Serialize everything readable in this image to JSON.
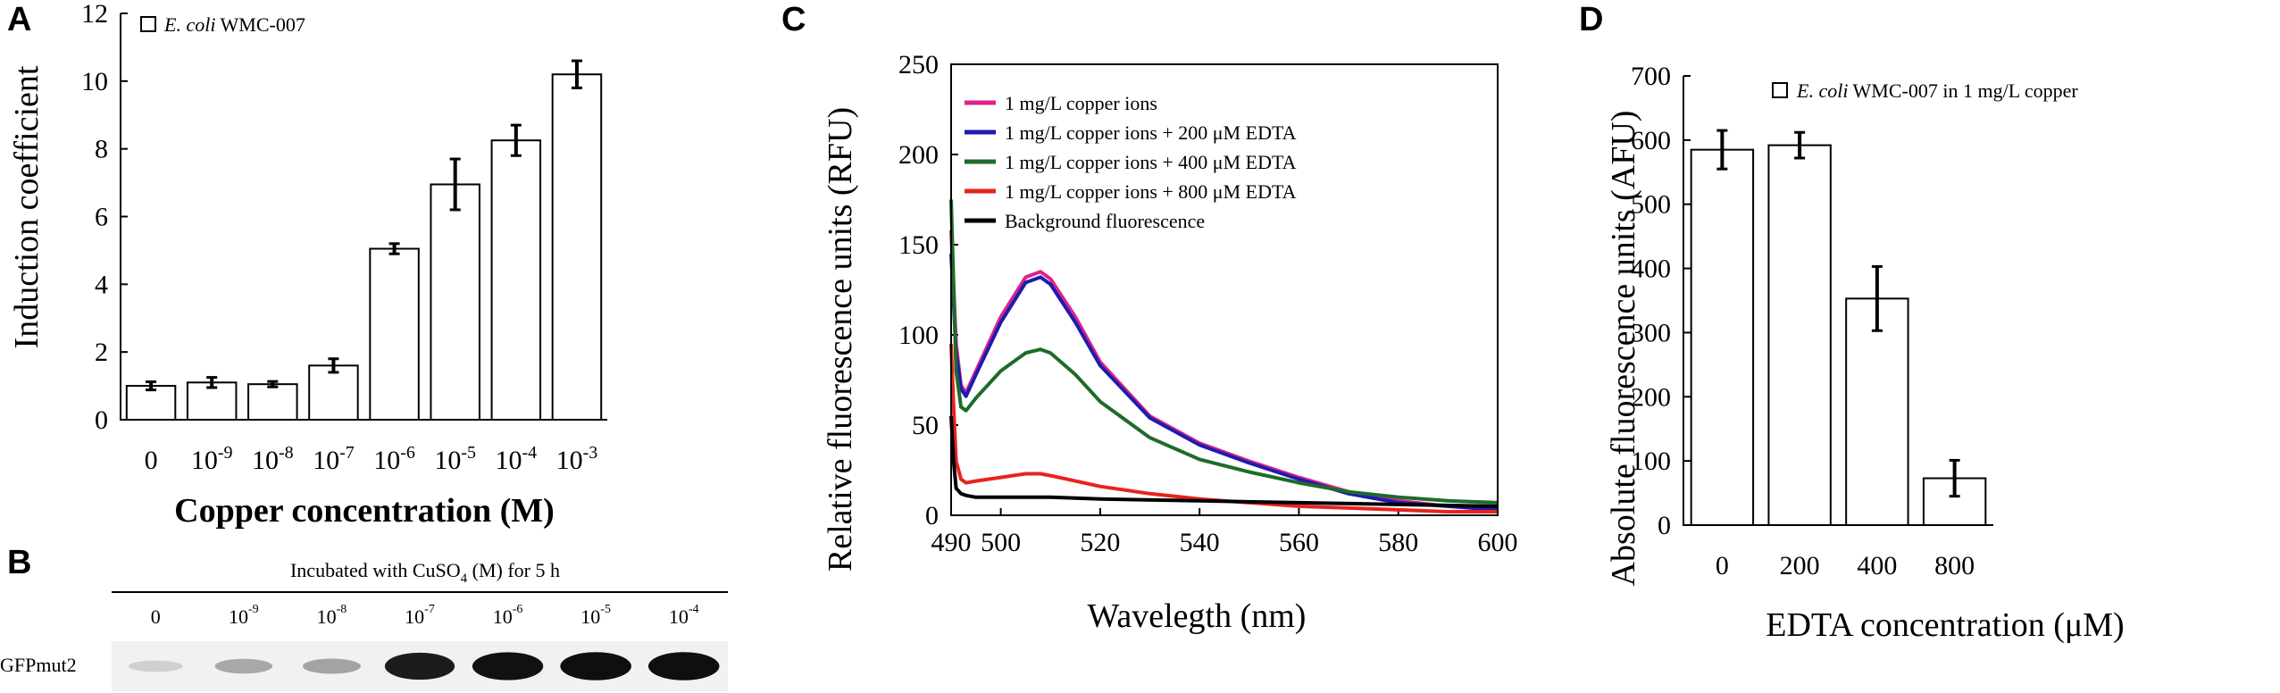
{
  "panels": {
    "A": {
      "letter": "A",
      "chart_data": {
        "type": "bar",
        "title": "",
        "xlabel": "Copper concentration (M)",
        "ylabel": "Induction coefficient",
        "categories": [
          {
            "base": "0",
            "exp": ""
          },
          {
            "base": "10",
            "exp": "-9"
          },
          {
            "base": "10",
            "exp": "-8"
          },
          {
            "base": "10",
            "exp": "-7"
          },
          {
            "base": "10",
            "exp": "-6"
          },
          {
            "base": "10",
            "exp": "-5"
          },
          {
            "base": "10",
            "exp": "-4"
          },
          {
            "base": "10",
            "exp": "-3"
          }
        ],
        "values": [
          1.0,
          1.1,
          1.05,
          1.6,
          5.05,
          6.95,
          8.25,
          10.2
        ],
        "errors": [
          0.12,
          0.15,
          0.08,
          0.2,
          0.15,
          0.75,
          0.45,
          0.4
        ],
        "ylim": [
          0,
          12
        ],
        "yticks": [
          "0",
          "2",
          "4",
          "6",
          "8",
          "10",
          "12"
        ],
        "legend": [
          {
            "label_italic": "E. coli",
            "label": " WMC-007",
            "marker": "open-square"
          }
        ]
      }
    },
    "B": {
      "letter": "B",
      "title": "Incubated with CuSO",
      "title_sub": "4",
      "title_tail": " (M) for 5 h",
      "lanes": [
        {
          "base": "0",
          "exp": ""
        },
        {
          "base": "10",
          "exp": "-9"
        },
        {
          "base": "10",
          "exp": "-8"
        },
        {
          "base": "10",
          "exp": "-7"
        },
        {
          "base": "10",
          "exp": "-6"
        },
        {
          "base": "10",
          "exp": "-5"
        },
        {
          "base": "10",
          "exp": "-4"
        }
      ],
      "band_label": "GFPmut2",
      "band_intensity": [
        0.12,
        0.3,
        0.32,
        0.92,
        0.97,
        0.98,
        0.98
      ]
    },
    "C": {
      "letter": "C",
      "chart_data": {
        "type": "line",
        "title": "",
        "xlabel": "Wavelegth (nm)",
        "ylabel": "Relative fluorescence units (RFU)",
        "xlim": [
          490,
          600
        ],
        "ylim": [
          0,
          250
        ],
        "xticks": [
          "490",
          "500",
          "520",
          "540",
          "560",
          "580",
          "600"
        ],
        "xtick_values": [
          490,
          500,
          520,
          540,
          560,
          580,
          600
        ],
        "yticks": [
          "0",
          "50",
          "100",
          "150",
          "200",
          "250"
        ],
        "series": [
          {
            "name": "1 mg/L copper ions",
            "color": "#e0218a",
            "x": [
              490,
              491,
              492,
              493,
              495,
              500,
              505,
              508,
              510,
              515,
              520,
              530,
              540,
              550,
              560,
              570,
              580,
              590,
              600
            ],
            "y": [
              158,
              95,
              72,
              68,
              80,
              110,
              132,
              135,
              131,
              110,
              85,
              55,
              40,
              30,
              21,
              13,
              8,
              5,
              3
            ]
          },
          {
            "name": "1 mg/L copper ions + 200 μM EDTA",
            "color": "#1c1cb0",
            "x": [
              490,
              491,
              492,
              493,
              495,
              500,
              505,
              508,
              510,
              515,
              520,
              530,
              540,
              550,
              560,
              570,
              580,
              590,
              600
            ],
            "y": [
              145,
              90,
              70,
              66,
              78,
              107,
              129,
              132,
              128,
              107,
              83,
              54,
              39,
              29,
              20,
              12,
              7,
              5,
              3
            ]
          },
          {
            "name": "1 mg/L copper ions + 400 μM EDTA",
            "color": "#1e6b2a",
            "x": [
              490,
              491,
              492,
              493,
              495,
              500,
              505,
              508,
              510,
              515,
              520,
              530,
              540,
              550,
              560,
              570,
              580,
              590,
              600
            ],
            "y": [
              175,
              80,
              60,
              58,
              65,
              80,
              90,
              92,
              90,
              78,
              63,
              43,
              31,
              24,
              18,
              13,
              10,
              8,
              7
            ]
          },
          {
            "name": "1 mg/L copper ions + 800 μM EDTA",
            "color": "#e8231f",
            "x": [
              490,
              490.5,
              491,
              492,
              493,
              495,
              500,
              505,
              508,
              510,
              515,
              520,
              530,
              540,
              550,
              560,
              570,
              580,
              590,
              600
            ],
            "y": [
              95,
              60,
              30,
              20,
              18,
              19,
              21,
              23,
              23,
              22,
              19,
              16,
              12,
              9,
              7,
              5,
              4,
              3,
              2,
              2
            ]
          },
          {
            "name": "Background fluorescence",
            "color": "#000000",
            "x": [
              490,
              490.5,
              491,
              492,
              493,
              495,
              500,
              510,
              520,
              540,
              560,
              580,
              600
            ],
            "y": [
              55,
              30,
              15,
              12,
              11,
              10,
              10,
              10,
              9,
              8,
              7,
              6,
              5
            ]
          }
        ],
        "legend_position": "top-left"
      }
    },
    "D": {
      "letter": "D",
      "chart_data": {
        "type": "bar",
        "title": "",
        "xlabel": "EDTA concentration (μM)",
        "ylabel": "Absolute fluorescence units (AFU)",
        "categories": [
          "0",
          "200",
          "400",
          "800"
        ],
        "values": [
          585,
          592,
          353,
          73
        ],
        "errors": [
          30,
          20,
          50,
          28
        ],
        "ylim": [
          0,
          700
        ],
        "yticks": [
          "0",
          "100",
          "200",
          "300",
          "400",
          "500",
          "600",
          "700"
        ],
        "legend": [
          {
            "label_italic": "E. coli",
            "label": " WMC-007 in 1 mg/L copper",
            "marker": "open-square"
          }
        ]
      }
    }
  }
}
